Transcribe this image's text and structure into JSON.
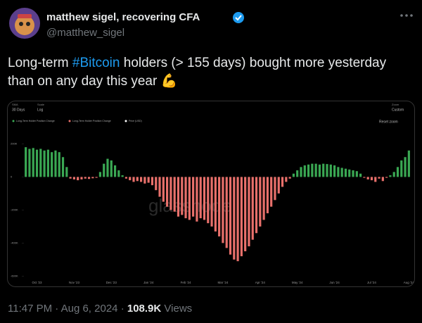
{
  "tweet": {
    "author_name": "matthew sigel, recovering CFA",
    "handle": "@matthew_sigel",
    "text_before": "Long-term ",
    "hashtag": "#Bitcoin",
    "text_after": " holders (> 155 days) bought more yesterday than on any day this year",
    "emoji": "💪",
    "time": "11:47 PM",
    "separator": "·",
    "date": "Aug 6, 2024",
    "views": "108.9K",
    "views_label": "Views"
  },
  "chart_data": {
    "type": "bar",
    "controls": {
      "sma_label": "SMA",
      "sma_value": "30 Days",
      "scale_label": "Scale",
      "scale_value": "Log",
      "zoom_label": "Zoom",
      "zoom_value": "Custom",
      "reset": "Reset zoom"
    },
    "legend": [
      {
        "name": "Long-Term Holder Position Change",
        "color": "#3aa853"
      },
      {
        "name": "Long-Term Holder Position Change",
        "color": "#e8706b"
      },
      {
        "name": "Price (USD)",
        "color": "#ffffff"
      }
    ],
    "watermark": "glassnode",
    "colors": {
      "positive": "#3aa853",
      "negative": "#e8706b"
    },
    "categories": [
      null,
      null,
      null,
      "Oct '23",
      null,
      null,
      null,
      null,
      null,
      null,
      null,
      null,
      null,
      "Nov '23",
      null,
      null,
      null,
      null,
      null,
      null,
      null,
      null,
      null,
      "Dec '23",
      null,
      null,
      null,
      null,
      null,
      null,
      null,
      null,
      null,
      "Jan '24",
      null,
      null,
      null,
      null,
      null,
      null,
      null,
      null,
      null,
      "Feb '24",
      null,
      null,
      null,
      null,
      null,
      null,
      null,
      null,
      null,
      "Mar '24",
      null,
      null,
      null,
      null,
      null,
      null,
      null,
      null,
      null,
      "Apr '24",
      null,
      null,
      null,
      null,
      null,
      null,
      null,
      null,
      null,
      "May '24",
      null,
      null,
      null,
      null,
      null,
      null,
      null,
      null,
      null,
      "Jun '24",
      null,
      null,
      null,
      null,
      null,
      null,
      null,
      null,
      null,
      "Jul '24",
      null,
      null,
      null,
      null,
      null,
      null,
      null,
      null,
      null,
      "Aug '24"
    ],
    "values": [
      180000,
      170000,
      175000,
      165000,
      170000,
      160000,
      165000,
      150000,
      160000,
      150000,
      120000,
      60000,
      -10000,
      -15000,
      -20000,
      -15000,
      -10000,
      -12000,
      -8000,
      -5000,
      30000,
      80000,
      110000,
      100000,
      70000,
      40000,
      10000,
      -10000,
      -20000,
      -30000,
      -25000,
      -30000,
      -40000,
      -35000,
      -50000,
      -80000,
      -120000,
      -150000,
      -180000,
      -200000,
      -210000,
      -240000,
      -230000,
      -250000,
      -260000,
      -240000,
      -270000,
      -250000,
      -260000,
      -280000,
      -300000,
      -330000,
      -360000,
      -400000,
      -430000,
      -470000,
      -500000,
      -510000,
      -480000,
      -450000,
      -420000,
      -380000,
      -340000,
      -300000,
      -260000,
      -220000,
      -180000,
      -140000,
      -100000,
      -60000,
      -30000,
      -10000,
      20000,
      40000,
      60000,
      70000,
      75000,
      80000,
      80000,
      75000,
      80000,
      78000,
      75000,
      70000,
      60000,
      55000,
      50000,
      45000,
      40000,
      35000,
      20000,
      -5000,
      -15000,
      -20000,
      -30000,
      -10000,
      -25000,
      -5000,
      10000,
      30000,
      60000,
      100000,
      120000,
      160000
    ],
    "ylim": [
      -620000,
      300000
    ],
    "yticks": [
      {
        "value": 200000,
        "label": "200K"
      },
      0,
      {
        "value": -200000,
        "label": "-200K"
      },
      {
        "value": -400000,
        "label": "-400K"
      },
      {
        "value": -600000,
        "label": "-600K"
      }
    ]
  }
}
